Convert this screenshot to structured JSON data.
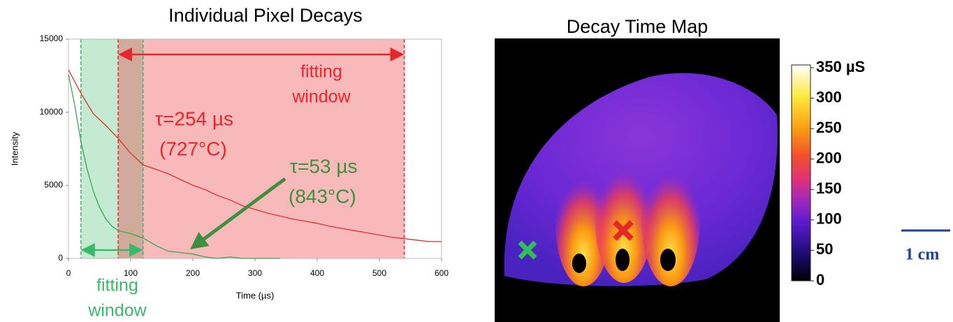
{
  "chart_data": [
    {
      "type": "line",
      "title": "Individual Pixel Decays",
      "x_label": "Time (µs)",
      "y_label": "Intensity",
      "xlim": [
        0,
        600
      ],
      "ylim": [
        0,
        15000
      ],
      "xticks": [
        0,
        100,
        200,
        300,
        400,
        500,
        600
      ],
      "yticks": [
        0,
        5000,
        10000,
        15000
      ],
      "windows": [
        {
          "range": [
            20,
            120
          ],
          "color": "#3cb86a"
        },
        {
          "range": [
            80,
            540
          ],
          "color": "#e8262a"
        }
      ],
      "series": [
        {
          "color": "#e0302f",
          "x": [
            0,
            20,
            40,
            60,
            80,
            100,
            120,
            140,
            160,
            180,
            200,
            220,
            240,
            260,
            280,
            300,
            320,
            340,
            360,
            380,
            400,
            420,
            440,
            460,
            480,
            500,
            520,
            540,
            560,
            580,
            600
          ],
          "values": [
            12900,
            11300,
            9900,
            9100,
            8200,
            7200,
            6400,
            6100,
            5800,
            5400,
            5000,
            4700,
            4300,
            4000,
            3600,
            3350,
            3100,
            2900,
            2700,
            2550,
            2400,
            2200,
            2050,
            1900,
            1750,
            1600,
            1450,
            1350,
            1250,
            1150,
            1150
          ]
        },
        {
          "color": "#3aa655",
          "x": [
            0,
            10,
            20,
            30,
            40,
            50,
            60,
            70,
            80,
            100,
            120,
            140,
            160,
            180,
            200,
            220,
            240,
            260,
            280,
            300,
            340
          ],
          "values": [
            12600,
            10500,
            8000,
            6100,
            4600,
            3500,
            2700,
            2200,
            1900,
            1700,
            1400,
            900,
            500,
            400,
            300,
            100,
            0,
            100,
            0,
            0,
            0
          ]
        }
      ],
      "annotations": [
        {
          "text": "fitting",
          "color": "#e8262a"
        },
        {
          "text": "window",
          "color": "#e8262a"
        },
        {
          "text": "τ=254 µs",
          "color": "#e8262a"
        },
        {
          "text": "(727°C)",
          "color": "#e8262a"
        },
        {
          "text": "τ=53 µs",
          "color": "#3e8f3e"
        },
        {
          "text": "(843°C)",
          "color": "#3e8f3e"
        },
        {
          "text": "fitting",
          "color": "#3cb86a"
        },
        {
          "text": "window",
          "color": "#3cb86a"
        }
      ]
    },
    {
      "type": "image",
      "title": "Decay Time Map",
      "clim": [
        0,
        350
      ],
      "cticks": [
        0,
        50,
        100,
        150,
        200,
        250,
        300,
        {
          "value": 350,
          "label": "350 µS"
        }
      ],
      "scale_bar": "1 cm"
    }
  ]
}
